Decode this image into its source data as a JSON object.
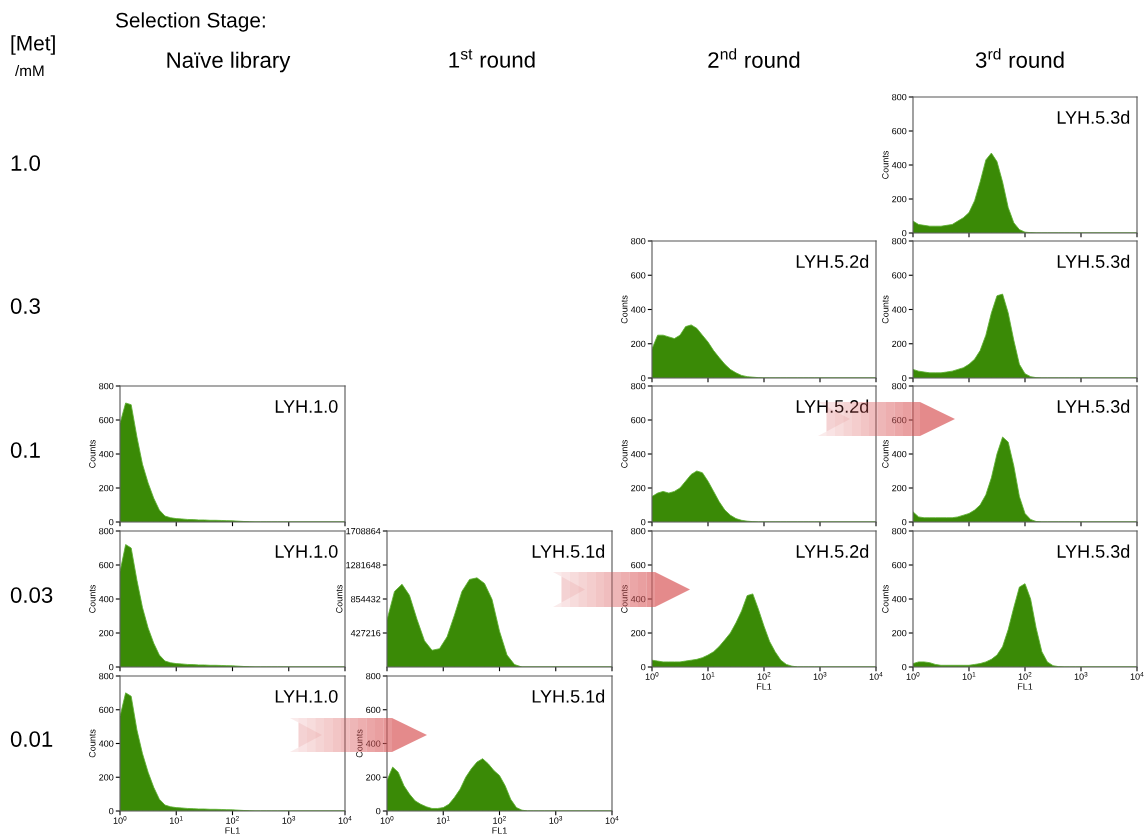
{
  "chart_data": [
    {
      "type": "other",
      "annotations": [
        "Selection Stage:",
        "Naïve library",
        "1$^{st}$ round",
        "2$^{nd}$ round",
        "3$^{rd}$ round",
        "[Met]",
        "/mM",
        "1.0",
        "0.3",
        "0.1",
        "0.03",
        "0.01"
      ]
    },
    {
      "type": "area",
      "annotations": [
        "LYH.5.3d"
      ],
      "ylabel": "Counts",
      "color": "#3a8a06",
      "log": "x",
      "tick_labels": "y",
      "xlim": [
        1,
        10000
      ],
      "ylim": [
        0,
        800
      ],
      "yticks": [
        0,
        200,
        400,
        600,
        800
      ],
      "xticks": [
        {
          "value": 1,
          "label": null
        },
        {
          "value": 10,
          "label": null
        },
        {
          "value": 100,
          "label": null
        },
        {
          "value": 1000,
          "label": null
        },
        {
          "value": 10000,
          "label": null
        }
      ],
      "x": [
        1,
        1.26,
        1.58,
        2,
        2.51,
        3.16,
        3.98,
        5.01,
        6.31,
        7.94,
        10,
        12.6,
        15.8,
        20,
        25.1,
        31.6,
        39.8,
        50.1,
        63.1,
        79.4,
        100,
        126,
        158,
        200,
        251,
        316,
        398,
        501,
        631,
        794,
        1000,
        10000
      ],
      "values": [
        70,
        50,
        45,
        40,
        40,
        40,
        45,
        50,
        70,
        90,
        120,
        190,
        300,
        430,
        470,
        420,
        300,
        150,
        60,
        20,
        5,
        2,
        0,
        0,
        0,
        0,
        0,
        0,
        0,
        0,
        0,
        0
      ]
    },
    {
      "type": "area",
      "annotations": [
        "LYH.5.2d"
      ],
      "ylabel": "Counts",
      "color": "#3a8a06",
      "log": "x",
      "tick_labels": "y",
      "xlim": [
        1,
        10000
      ],
      "ylim": [
        0,
        800
      ],
      "yticks": [
        0,
        200,
        400,
        600,
        800
      ],
      "xticks": [
        {
          "value": 1,
          "label": null
        },
        {
          "value": 10,
          "label": null
        },
        {
          "value": 100,
          "label": null
        },
        {
          "value": 1000,
          "label": null
        },
        {
          "value": 10000,
          "label": null
        }
      ],
      "x": [
        1,
        1.26,
        1.58,
        2,
        2.51,
        3.16,
        3.98,
        5.01,
        6.31,
        7.94,
        10,
        12.6,
        15.8,
        20,
        25.1,
        31.6,
        39.8,
        50.1,
        63.1,
        79.4,
        100,
        126,
        158,
        200,
        251,
        316,
        398,
        501,
        631,
        794,
        1000,
        10000
      ],
      "values": [
        170,
        250,
        250,
        240,
        230,
        250,
        300,
        310,
        290,
        250,
        210,
        160,
        120,
        80,
        50,
        30,
        15,
        8,
        5,
        2,
        0,
        0,
        0,
        0,
        0,
        0,
        0,
        0,
        0,
        0,
        0,
        0
      ]
    },
    {
      "type": "area",
      "annotations": [
        "LYH.5.3d"
      ],
      "ylabel": "Counts",
      "color": "#3a8a06",
      "log": "x",
      "tick_labels": "y",
      "xlim": [
        1,
        10000
      ],
      "ylim": [
        0,
        800
      ],
      "yticks": [
        0,
        200,
        400,
        600,
        800
      ],
      "xticks": [
        {
          "value": 1,
          "label": null
        },
        {
          "value": 10,
          "label": null
        },
        {
          "value": 100,
          "label": null
        },
        {
          "value": 1000,
          "label": null
        },
        {
          "value": 10000,
          "label": null
        }
      ],
      "x": [
        1,
        1.26,
        1.58,
        2,
        2.51,
        3.16,
        3.98,
        5.01,
        6.31,
        7.94,
        10,
        12.6,
        15.8,
        20,
        25.1,
        31.6,
        39.8,
        50.1,
        63.1,
        79.4,
        100,
        126,
        158,
        200,
        251,
        316,
        398,
        501,
        631,
        794,
        1000,
        10000
      ],
      "values": [
        50,
        40,
        35,
        30,
        30,
        30,
        35,
        40,
        50,
        60,
        80,
        110,
        160,
        250,
        380,
        480,
        490,
        380,
        220,
        80,
        25,
        8,
        2,
        0,
        0,
        0,
        0,
        0,
        0,
        0,
        0,
        0
      ]
    },
    {
      "type": "area",
      "annotations": [
        "LYH.1.0"
      ],
      "ylabel": "Counts",
      "color": "#3a8a06",
      "log": "x",
      "tick_labels": "y",
      "xlim": [
        1,
        10000
      ],
      "ylim": [
        0,
        800
      ],
      "yticks": [
        0,
        200,
        400,
        600,
        800
      ],
      "xticks": [
        {
          "value": 1,
          "label": null
        },
        {
          "value": 10,
          "label": null
        },
        {
          "value": 100,
          "label": null
        },
        {
          "value": 1000,
          "label": null
        },
        {
          "value": 10000,
          "label": null
        }
      ],
      "x": [
        1,
        1.26,
        1.58,
        2,
        2.51,
        3.16,
        3.98,
        5.01,
        6.31,
        7.94,
        10,
        12.6,
        15.8,
        20,
        25.1,
        31.6,
        39.8,
        50.1,
        63.1,
        79.4,
        100,
        126,
        158,
        200,
        251,
        316,
        398,
        501,
        631,
        794,
        1000,
        10000
      ],
      "values": [
        580,
        700,
        690,
        500,
        340,
        230,
        140,
        70,
        35,
        25,
        20,
        18,
        15,
        14,
        12,
        12,
        10,
        10,
        9,
        8,
        7,
        5,
        3,
        1,
        0,
        0,
        0,
        0,
        0,
        0,
        0,
        0
      ]
    },
    {
      "type": "area",
      "annotations": [
        "LYH.5.2d"
      ],
      "ylabel": "Counts",
      "color": "#3a8a06",
      "log": "x",
      "tick_labels": "y",
      "xlim": [
        1,
        10000
      ],
      "ylim": [
        0,
        800
      ],
      "yticks": [
        0,
        200,
        400,
        600,
        800
      ],
      "xticks": [
        {
          "value": 1,
          "label": null
        },
        {
          "value": 10,
          "label": null
        },
        {
          "value": 100,
          "label": null
        },
        {
          "value": 1000,
          "label": null
        },
        {
          "value": 10000,
          "label": null
        }
      ],
      "x": [
        1,
        1.26,
        1.58,
        2,
        2.51,
        3.16,
        3.98,
        5.01,
        6.31,
        7.94,
        10,
        12.6,
        15.8,
        20,
        25.1,
        31.6,
        39.8,
        50.1,
        63.1,
        79.4,
        100,
        126,
        158,
        200,
        251,
        316,
        398,
        501,
        631,
        794,
        1000,
        10000
      ],
      "values": [
        150,
        170,
        180,
        170,
        180,
        200,
        240,
        280,
        300,
        290,
        240,
        180,
        120,
        70,
        40,
        20,
        10,
        5,
        2,
        0,
        0,
        0,
        0,
        0,
        0,
        0,
        0,
        0,
        0,
        0,
        0,
        0
      ]
    },
    {
      "type": "area",
      "annotations": [
        "LYH.5.3d"
      ],
      "ylabel": "Counts",
      "color": "#3a8a06",
      "log": "x",
      "tick_labels": "y",
      "xlim": [
        1,
        10000
      ],
      "ylim": [
        0,
        800
      ],
      "yticks": [
        0,
        200,
        400,
        600,
        800
      ],
      "xticks": [
        {
          "value": 1,
          "label": null
        },
        {
          "value": 10,
          "label": null
        },
        {
          "value": 100,
          "label": null
        },
        {
          "value": 1000,
          "label": null
        },
        {
          "value": 10000,
          "label": null
        }
      ],
      "x": [
        1,
        1.26,
        1.58,
        2,
        2.51,
        3.16,
        3.98,
        5.01,
        6.31,
        7.94,
        10,
        12.6,
        15.8,
        20,
        25.1,
        31.6,
        39.8,
        50.1,
        63.1,
        79.4,
        100,
        126,
        158,
        200,
        251,
        316,
        398,
        501,
        631,
        794,
        1000,
        10000
      ],
      "values": [
        60,
        30,
        25,
        25,
        25,
        25,
        25,
        25,
        30,
        40,
        50,
        70,
        100,
        160,
        260,
        400,
        500,
        470,
        330,
        150,
        50,
        15,
        3,
        0,
        0,
        0,
        0,
        0,
        0,
        0,
        0,
        0
      ]
    },
    {
      "type": "area",
      "annotations": [
        "LYH.1.0"
      ],
      "ylabel": "Counts",
      "color": "#3a8a06",
      "log": "x",
      "tick_labels": "y",
      "xlim": [
        1,
        10000
      ],
      "ylim": [
        0,
        800
      ],
      "yticks": [
        0,
        200,
        400,
        600,
        800
      ],
      "xticks": [
        {
          "value": 1,
          "label": null
        },
        {
          "value": 10,
          "label": null
        },
        {
          "value": 100,
          "label": null
        },
        {
          "value": 1000,
          "label": null
        },
        {
          "value": 10000,
          "label": null
        }
      ],
      "x": [
        1,
        1.26,
        1.58,
        2,
        2.51,
        3.16,
        3.98,
        5.01,
        6.31,
        7.94,
        10,
        12.6,
        15.8,
        20,
        25.1,
        31.6,
        39.8,
        50.1,
        63.1,
        79.4,
        100,
        126,
        158,
        200,
        251,
        316,
        398,
        501,
        631,
        794,
        1000,
        10000
      ],
      "values": [
        560,
        720,
        700,
        510,
        350,
        230,
        140,
        70,
        35,
        25,
        20,
        18,
        15,
        14,
        12,
        12,
        10,
        10,
        9,
        8,
        7,
        5,
        3,
        1,
        0,
        0,
        0,
        0,
        0,
        0,
        0,
        0
      ]
    },
    {
      "type": "area",
      "annotations": [
        "LYH.5.1d"
      ],
      "ylabel": "Counts",
      "color": "#3a8a06",
      "log": "x",
      "tick_labels": "y",
      "xlim": [
        1,
        10000
      ],
      "ylim": [
        0,
        1708864
      ],
      "yticks": [
        427216,
        854432,
        1281648,
        1708864
      ],
      "xticks": [
        {
          "value": 1,
          "label": null
        },
        {
          "value": 10,
          "label": null
        },
        {
          "value": 100,
          "label": null
        },
        {
          "value": 1000,
          "label": null
        },
        {
          "value": 10000,
          "label": null
        }
      ],
      "x": [
        1,
        1.36,
        1.85,
        2.51,
        3.41,
        4.64,
        6.31,
        8.58,
        11.7,
        15.8,
        21.5,
        29.3,
        39.8,
        54.1,
        73.6,
        100,
        136,
        185,
        251,
        10000
      ],
      "values": [
        590000,
        950000,
        1040000,
        900000,
        600000,
        330000,
        210000,
        230000,
        380000,
        650000,
        950000,
        1100000,
        1120000,
        1050000,
        850000,
        450000,
        150000,
        30000,
        0,
        0
      ]
    },
    {
      "type": "area",
      "annotations": [
        "LYH.5.2d"
      ],
      "ylabel": "Counts",
      "xlabel": "FL1",
      "color": "#3a8a06",
      "log": "x",
      "xlim": [
        1,
        10000
      ],
      "ylim": [
        0,
        800
      ],
      "yticks": [
        0,
        200,
        400,
        600,
        800
      ],
      "xticks": [
        {
          "value": 1,
          "label": "10$^{0}$"
        },
        {
          "value": 10,
          "label": "10$^{1}$"
        },
        {
          "value": 100,
          "label": "10$^{2}$"
        },
        {
          "value": 1000,
          "label": "10$^{3}$"
        },
        {
          "value": 10000,
          "label": "10$^{4}$"
        }
      ],
      "x": [
        1,
        1.26,
        1.58,
        2,
        2.51,
        3.16,
        3.98,
        5.01,
        6.31,
        7.94,
        10,
        12.6,
        15.8,
        20,
        25.1,
        31.6,
        39.8,
        50.1,
        63.1,
        79.4,
        100,
        126,
        158,
        200,
        251,
        316,
        398,
        501,
        631,
        794,
        1000,
        10000
      ],
      "values": [
        40,
        35,
        30,
        30,
        30,
        30,
        35,
        40,
        45,
        55,
        70,
        90,
        120,
        160,
        200,
        260,
        330,
        420,
        430,
        340,
        240,
        150,
        90,
        40,
        15,
        5,
        0,
        0,
        0,
        0,
        0,
        0
      ]
    },
    {
      "type": "area",
      "annotations": [
        "LYH.5.3d"
      ],
      "ylabel": "Counts",
      "xlabel": "FL1",
      "color": "#3a8a06",
      "log": "x",
      "xlim": [
        1,
        10000
      ],
      "ylim": [
        0,
        800
      ],
      "yticks": [
        0,
        200,
        400,
        600,
        800
      ],
      "xticks": [
        {
          "value": 1,
          "label": "10$^{0}$"
        },
        {
          "value": 10,
          "label": "10$^{1}$"
        },
        {
          "value": 100,
          "label": "10$^{2}$"
        },
        {
          "value": 1000,
          "label": "10$^{3}$"
        },
        {
          "value": 10000,
          "label": "10$^{4}$"
        }
      ],
      "x": [
        1,
        1.26,
        1.58,
        2,
        2.51,
        3.16,
        3.98,
        5.01,
        6.31,
        7.94,
        10,
        12.6,
        15.8,
        20,
        25.1,
        31.6,
        39.8,
        50.1,
        63.1,
        79.4,
        100,
        126,
        158,
        200,
        251,
        316,
        398,
        501,
        631,
        794,
        1000,
        10000
      ],
      "values": [
        20,
        30,
        30,
        25,
        15,
        10,
        10,
        10,
        10,
        10,
        10,
        15,
        20,
        30,
        45,
        70,
        120,
        220,
        350,
        470,
        490,
        400,
        230,
        90,
        30,
        8,
        2,
        0,
        0,
        0,
        0,
        0
      ]
    },
    {
      "type": "area",
      "annotations": [
        "LYH.1.0"
      ],
      "ylabel": "Counts",
      "xlabel": "FL1",
      "color": "#3a8a06",
      "log": "x",
      "xlim": [
        1,
        10000
      ],
      "ylim": [
        0,
        800
      ],
      "yticks": [
        0,
        200,
        400,
        600,
        800
      ],
      "xticks": [
        {
          "value": 1,
          "label": "10$^{0}$"
        },
        {
          "value": 10,
          "label": "10$^{1}$"
        },
        {
          "value": 100,
          "label": "10$^{2}$"
        },
        {
          "value": 1000,
          "label": "10$^{3}$"
        },
        {
          "value": 10000,
          "label": "10$^{4}$"
        }
      ],
      "x": [
        1,
        1.26,
        1.58,
        2,
        2.51,
        3.16,
        3.98,
        5.01,
        6.31,
        7.94,
        10,
        12.6,
        15.8,
        20,
        25.1,
        31.6,
        39.8,
        50.1,
        63.1,
        79.4,
        100,
        126,
        158,
        200,
        251,
        316,
        398,
        501,
        631,
        794,
        1000,
        10000
      ],
      "values": [
        560,
        700,
        680,
        480,
        340,
        230,
        140,
        70,
        35,
        25,
        20,
        18,
        15,
        14,
        12,
        12,
        10,
        10,
        9,
        8,
        7,
        5,
        3,
        1,
        0,
        0,
        0,
        0,
        0,
        0,
        0,
        0
      ]
    },
    {
      "type": "area",
      "annotations": [
        "LYH.5.1d"
      ],
      "ylabel": "Counts",
      "xlabel": "FL1",
      "color": "#3a8a06",
      "log": "x",
      "xlim": [
        1,
        10000
      ],
      "ylim": [
        0,
        800
      ],
      "yticks": [
        0,
        200,
        400,
        600,
        800
      ],
      "xticks": [
        {
          "value": 1,
          "label": "10$^{0}$"
        },
        {
          "value": 10,
          "label": "10$^{1}$"
        },
        {
          "value": 100,
          "label": "10$^{2}$"
        },
        {
          "value": 1000,
          "label": "10$^{3}$"
        },
        {
          "value": 10000,
          "label": "10$^{4}$"
        }
      ],
      "x": [
        1,
        1.26,
        1.58,
        2,
        2.51,
        3.16,
        3.98,
        5.01,
        6.31,
        7.94,
        10,
        12.6,
        15.8,
        20,
        25.1,
        31.6,
        39.8,
        50.1,
        63.1,
        79.4,
        100,
        126,
        158,
        200,
        251,
        316,
        398,
        501,
        631,
        794,
        1000,
        10000
      ],
      "values": [
        180,
        260,
        230,
        150,
        100,
        60,
        40,
        25,
        15,
        15,
        20,
        40,
        80,
        130,
        200,
        250,
        290,
        310,
        280,
        240,
        210,
        150,
        70,
        20,
        5,
        0,
        0,
        0,
        0,
        0,
        0,
        0
      ]
    }
  ]
}
